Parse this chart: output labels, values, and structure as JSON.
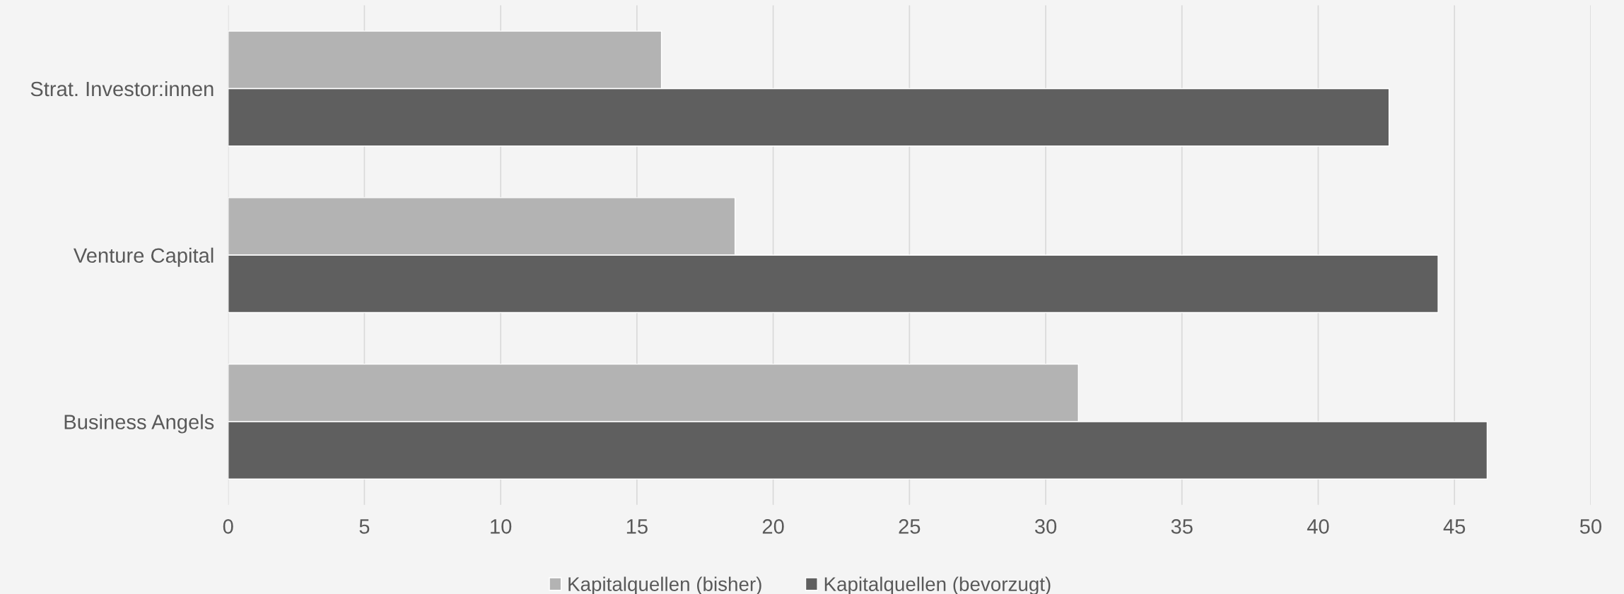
{
  "chart_data": {
    "type": "bar",
    "orientation": "horizontal",
    "categories": [
      "Strat. Investor:innen",
      "Venture Capital",
      "Business Angels"
    ],
    "series": [
      {
        "name": "Kapitalquellen (bisher)",
        "color": "#b3b3b3",
        "values": [
          15.9,
          18.6,
          31.2
        ]
      },
      {
        "name": "Kapitalquellen (bevorzugt)",
        "color": "#5f5f5f",
        "values": [
          42.6,
          44.4,
          46.2
        ]
      }
    ],
    "xlim": [
      0,
      50
    ],
    "xticks": [
      0,
      5,
      10,
      15,
      20,
      25,
      30,
      35,
      40,
      45,
      50
    ],
    "grid": "x",
    "legend": "bottom"
  }
}
